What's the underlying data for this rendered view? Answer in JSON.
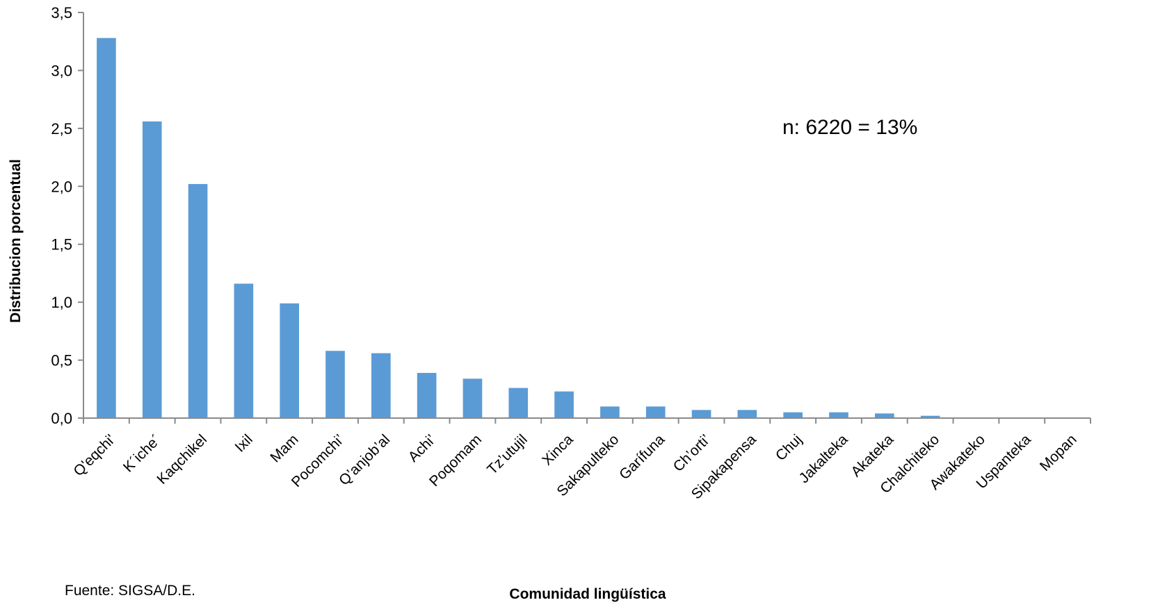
{
  "chart_data": {
    "type": "bar",
    "title": "",
    "xlabel": "Comunidad lingüística",
    "ylabel": "Distribucion porcentual",
    "ylim": [
      0,
      3.5
    ],
    "yticks": [
      "0,0",
      "0,5",
      "1,0",
      "1,5",
      "2,0",
      "2,5",
      "3,0",
      "3,5"
    ],
    "ytick_values": [
      0,
      0.5,
      1.0,
      1.5,
      2.0,
      2.5,
      3.0,
      3.5
    ],
    "categories": [
      "Q'eqchi'",
      "K´iche´",
      "Kaqchikel",
      "Ixil",
      "Mam",
      "Pocomchi’",
      "Q’anjob’al",
      "Achi’",
      "Poqomam",
      "Tz’utujil",
      "Xinca",
      "Sakapulteko",
      "Garífuna",
      "Ch’orti’",
      "Sipakapensa",
      "Chuj",
      "Jakalteka",
      "Akateka",
      "Chalchiteko",
      "Awakateko",
      "Uspanteka",
      "Mopan"
    ],
    "values": [
      3.28,
      2.56,
      2.02,
      1.16,
      0.99,
      0.58,
      0.56,
      0.39,
      0.34,
      0.26,
      0.23,
      0.1,
      0.1,
      0.07,
      0.07,
      0.05,
      0.05,
      0.04,
      0.02,
      0.0,
      0.0,
      0.0
    ],
    "bar_color": "#5b9bd5",
    "annotation": "n: 6220 = 13%",
    "source": "Fuente: SIGSA/D.E.",
    "grid": false,
    "legend": "none"
  }
}
